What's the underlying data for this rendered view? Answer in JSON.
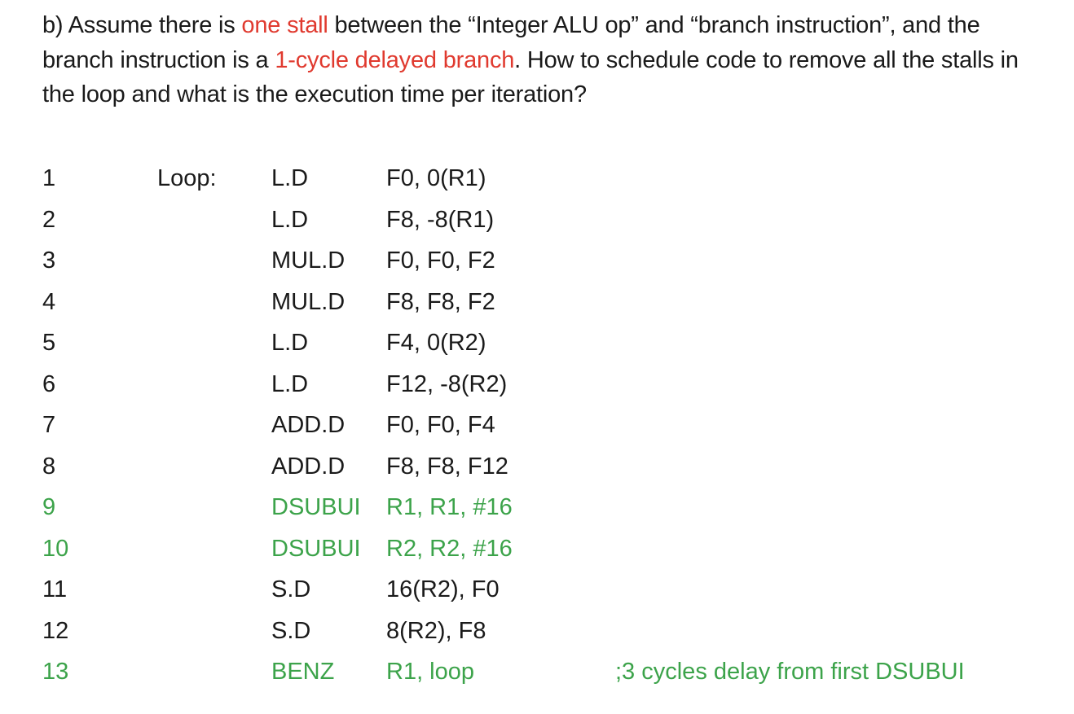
{
  "question": {
    "prefix": "b) Assume there is ",
    "highlight1": "one stall",
    "middle": " between the “Integer ALU op” and “branch instruction”, and the branch instruction is a ",
    "highlight2": "1-cycle delayed branch",
    "suffix": ". How to schedule code to remove all the stalls in the loop and what is the execution time per iteration?"
  },
  "colors": {
    "highlight": "#e03a2f",
    "changed": "#3ca34a",
    "text": "#1a1a1a"
  },
  "code": [
    {
      "num": "1",
      "label": "Loop:",
      "op": "L.D",
      "args": "F0, 0(R1)",
      "comment": ""
    },
    {
      "num": "2",
      "label": "",
      "op": "L.D",
      "args": "F8, -8(R1)",
      "comment": ""
    },
    {
      "num": "3",
      "label": "",
      "op": "MUL.D",
      "args": "F0, F0, F2",
      "comment": ""
    },
    {
      "num": "4",
      "label": "",
      "op": "MUL.D",
      "args": "F8, F8, F2",
      "comment": ""
    },
    {
      "num": "5",
      "label": "",
      "op": "L.D",
      "args": "F4, 0(R2)",
      "comment": ""
    },
    {
      "num": "6",
      "label": "",
      "op": "L.D",
      "args": "F12, -8(R2)",
      "comment": ""
    },
    {
      "num": "7",
      "label": "",
      "op": "ADD.D",
      "args": "F0, F0, F4",
      "comment": ""
    },
    {
      "num": "8",
      "label": "",
      "op": "ADD.D",
      "args": "F8, F8, F12",
      "comment": ""
    },
    {
      "num": "9",
      "label": "",
      "op": "DSUBUI",
      "args": "R1, R1, #16",
      "comment": ""
    },
    {
      "num": "10",
      "label": "",
      "op": "DSUBUI",
      "args": "R2, R2, #16",
      "comment": ""
    },
    {
      "num": "11",
      "label": "",
      "op": "S.D",
      "args": "16(R2), F0",
      "comment": ""
    },
    {
      "num": "12",
      "label": "",
      "op": "S.D",
      "args": "8(R2), F8",
      "comment": ""
    },
    {
      "num": "13",
      "label": "",
      "op": "BENZ",
      "args": "R1, loop",
      "comment": ";3 cycles delay from first DSUBUI"
    }
  ]
}
